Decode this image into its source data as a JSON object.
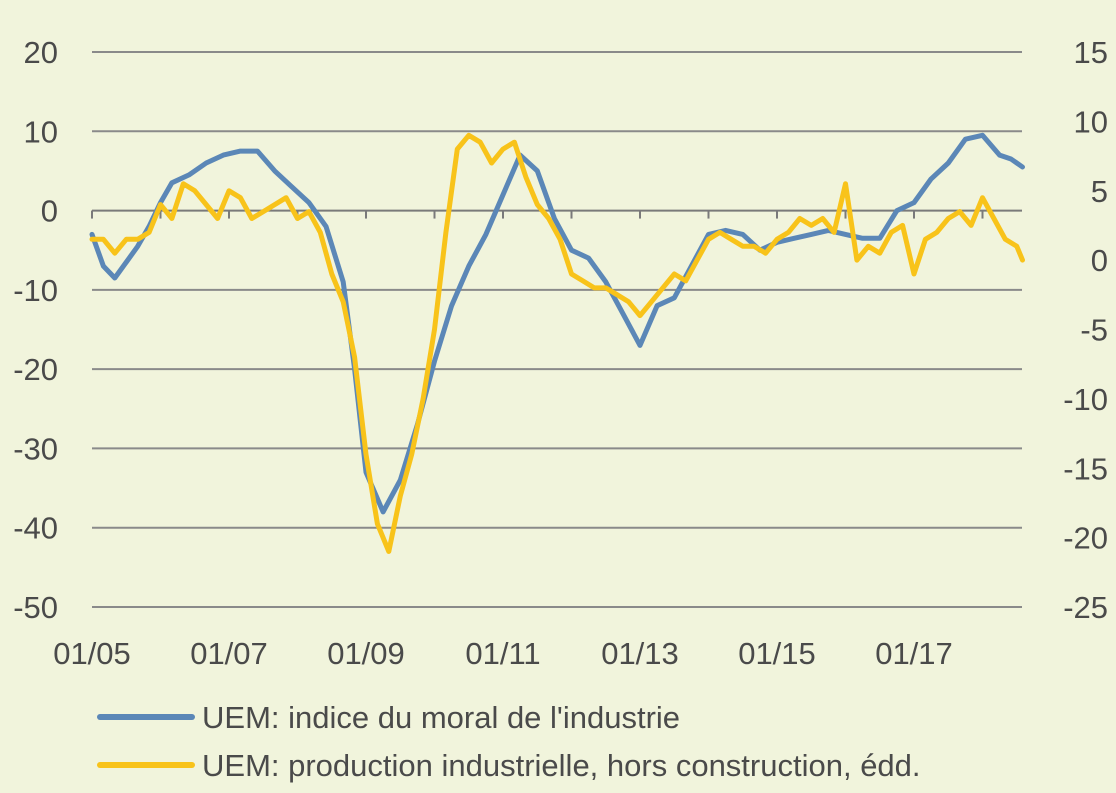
{
  "chart_data": {
    "type": "line",
    "title": "",
    "xlabel": "",
    "ylabel": "",
    "x_range": [
      "2005-01",
      "2018-08"
    ],
    "x_ticks": [
      "01/05",
      "01/07",
      "01/09",
      "01/11",
      "01/13",
      "01/15",
      "01/17"
    ],
    "y_left": {
      "range": [
        -50,
        20
      ],
      "ticks": [
        "20",
        "10",
        "0",
        "-10",
        "-20",
        "-30",
        "-40",
        "-50"
      ]
    },
    "y_right": {
      "range": [
        -25,
        15
      ],
      "ticks": [
        "15",
        "10",
        "5",
        "0",
        "-5",
        "-10",
        "-15",
        "-20",
        "-25"
      ]
    },
    "grid": true,
    "legend_position": "bottom",
    "series": [
      {
        "name": "UEM: indice du moral de l'industrie",
        "axis": "left",
        "color": "#5b87b7",
        "points": [
          [
            "2005-01",
            -3
          ],
          [
            "2005-03",
            -7
          ],
          [
            "2005-05",
            -8.5
          ],
          [
            "2005-07",
            -6.5
          ],
          [
            "2005-09",
            -4.5
          ],
          [
            "2005-11",
            -2
          ],
          [
            "2006-01",
            1
          ],
          [
            "2006-03",
            3.5
          ],
          [
            "2006-06",
            4.5
          ],
          [
            "2006-09",
            6
          ],
          [
            "2006-12",
            7
          ],
          [
            "2007-03",
            7.5
          ],
          [
            "2007-06",
            7.5
          ],
          [
            "2007-09",
            5
          ],
          [
            "2007-12",
            3
          ],
          [
            "2008-03",
            1
          ],
          [
            "2008-06",
            -2
          ],
          [
            "2008-09",
            -9
          ],
          [
            "2008-11",
            -20
          ],
          [
            "2009-01",
            -33
          ],
          [
            "2009-04",
            -38
          ],
          [
            "2009-07",
            -34
          ],
          [
            "2009-10",
            -27
          ],
          [
            "2010-01",
            -19
          ],
          [
            "2010-04",
            -12
          ],
          [
            "2010-07",
            -7
          ],
          [
            "2010-10",
            -3
          ],
          [
            "2011-01",
            2
          ],
          [
            "2011-04",
            7
          ],
          [
            "2011-07",
            5
          ],
          [
            "2011-10",
            -1
          ],
          [
            "2012-01",
            -5
          ],
          [
            "2012-04",
            -6
          ],
          [
            "2012-07",
            -9
          ],
          [
            "2012-10",
            -13
          ],
          [
            "2013-01",
            -17
          ],
          [
            "2013-04",
            -12
          ],
          [
            "2013-07",
            -11
          ],
          [
            "2013-10",
            -7
          ],
          [
            "2014-01",
            -3
          ],
          [
            "2014-04",
            -2.5
          ],
          [
            "2014-07",
            -3
          ],
          [
            "2014-10",
            -5
          ],
          [
            "2015-01",
            -4
          ],
          [
            "2015-04",
            -3.5
          ],
          [
            "2015-07",
            -3
          ],
          [
            "2015-10",
            -2.5
          ],
          [
            "2016-01",
            -3
          ],
          [
            "2016-04",
            -3.5
          ],
          [
            "2016-07",
            -3.5
          ],
          [
            "2016-10",
            0
          ],
          [
            "2017-01",
            1
          ],
          [
            "2017-04",
            4
          ],
          [
            "2017-07",
            6
          ],
          [
            "2017-10",
            9
          ],
          [
            "2018-01",
            9.5
          ],
          [
            "2018-04",
            7
          ],
          [
            "2018-06",
            6.5
          ],
          [
            "2018-08",
            5.5
          ]
        ]
      },
      {
        "name": "UEM: production industrielle, hors construction, édd.",
        "axis": "right",
        "color": "#f8c31a",
        "points": [
          [
            "2005-01",
            1.5
          ],
          [
            "2005-03",
            1.5
          ],
          [
            "2005-05",
            0.5
          ],
          [
            "2005-07",
            1.5
          ],
          [
            "2005-09",
            1.5
          ],
          [
            "2005-11",
            2
          ],
          [
            "2006-01",
            4
          ],
          [
            "2006-03",
            3
          ],
          [
            "2006-05",
            5.5
          ],
          [
            "2006-07",
            5
          ],
          [
            "2006-09",
            4
          ],
          [
            "2006-11",
            3
          ],
          [
            "2007-01",
            5
          ],
          [
            "2007-03",
            4.5
          ],
          [
            "2007-05",
            3
          ],
          [
            "2007-07",
            3.5
          ],
          [
            "2007-09",
            4
          ],
          [
            "2007-11",
            4.5
          ],
          [
            "2008-01",
            3
          ],
          [
            "2008-03",
            3.5
          ],
          [
            "2008-05",
            2
          ],
          [
            "2008-07",
            -1
          ],
          [
            "2008-09",
            -3
          ],
          [
            "2008-11",
            -7
          ],
          [
            "2009-01",
            -14
          ],
          [
            "2009-03",
            -19
          ],
          [
            "2009-05",
            -21
          ],
          [
            "2009-07",
            -17
          ],
          [
            "2009-09",
            -14
          ],
          [
            "2009-11",
            -10
          ],
          [
            "2010-01",
            -5
          ],
          [
            "2010-03",
            2
          ],
          [
            "2010-05",
            8
          ],
          [
            "2010-07",
            9
          ],
          [
            "2010-09",
            8.5
          ],
          [
            "2010-11",
            7
          ],
          [
            "2011-01",
            8
          ],
          [
            "2011-03",
            8.5
          ],
          [
            "2011-05",
            6
          ],
          [
            "2011-07",
            4
          ],
          [
            "2011-09",
            3
          ],
          [
            "2011-11",
            1.5
          ],
          [
            "2012-01",
            -1
          ],
          [
            "2012-03",
            -1.5
          ],
          [
            "2012-05",
            -2
          ],
          [
            "2012-07",
            -2
          ],
          [
            "2012-09",
            -2.5
          ],
          [
            "2012-11",
            -3
          ],
          [
            "2013-01",
            -4
          ],
          [
            "2013-03",
            -3
          ],
          [
            "2013-05",
            -2
          ],
          [
            "2013-07",
            -1
          ],
          [
            "2013-09",
            -1.5
          ],
          [
            "2013-11",
            0
          ],
          [
            "2014-01",
            1.5
          ],
          [
            "2014-03",
            2
          ],
          [
            "2014-05",
            1.5
          ],
          [
            "2014-07",
            1
          ],
          [
            "2014-09",
            1
          ],
          [
            "2014-11",
            0.5
          ],
          [
            "2015-01",
            1.5
          ],
          [
            "2015-03",
            2
          ],
          [
            "2015-05",
            3
          ],
          [
            "2015-07",
            2.5
          ],
          [
            "2015-09",
            3
          ],
          [
            "2015-11",
            2
          ],
          [
            "2016-01",
            5.5
          ],
          [
            "2016-03",
            0
          ],
          [
            "2016-05",
            1
          ],
          [
            "2016-07",
            0.5
          ],
          [
            "2016-09",
            2
          ],
          [
            "2016-11",
            2.5
          ],
          [
            "2017-01",
            -1
          ],
          [
            "2017-03",
            1.5
          ],
          [
            "2017-05",
            2
          ],
          [
            "2017-07",
            3
          ],
          [
            "2017-09",
            3.5
          ],
          [
            "2017-11",
            2.5
          ],
          [
            "2018-01",
            4.5
          ],
          [
            "2018-03",
            3
          ],
          [
            "2018-05",
            1.5
          ],
          [
            "2018-07",
            1
          ],
          [
            "2018-08",
            0
          ]
        ]
      }
    ]
  }
}
